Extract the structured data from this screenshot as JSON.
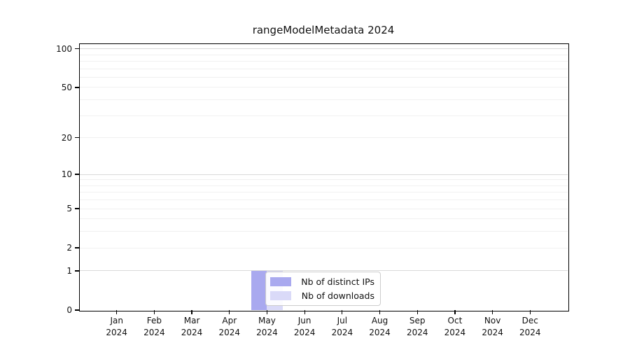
{
  "title": "rangeModelMetadata 2024",
  "chart_data": {
    "type": "bar",
    "title": "rangeModelMetadata 2024",
    "categories": [
      "Jan",
      "Feb",
      "Mar",
      "Apr",
      "May",
      "Jun",
      "Jul",
      "Aug",
      "Sep",
      "Oct",
      "Nov",
      "Dec"
    ],
    "x_year": "2024",
    "series": [
      {
        "id": "nb-of-distinct-ips",
        "name": "Nb of distinct IPs",
        "color": "#a9a9ef",
        "values": [
          0,
          0,
          0,
          0,
          1,
          0,
          0,
          0,
          0,
          0,
          0,
          0
        ]
      },
      {
        "id": "nb-of-downloads",
        "name": "Nb of downloads",
        "color": "#dadaf8",
        "values": [
          0,
          0,
          0,
          0,
          1,
          0,
          0,
          0,
          0,
          0,
          0,
          0
        ]
      }
    ],
    "xlabel": "",
    "ylabel": "",
    "yscale": "log1p",
    "ylim": [
      0,
      110
    ],
    "yticks": [
      0,
      1,
      2,
      5,
      10,
      20,
      50,
      100
    ],
    "major_gridlines": [
      1,
      10,
      100
    ],
    "minor_gridlines": [
      2,
      3,
      4,
      5,
      6,
      7,
      8,
      9,
      20,
      30,
      40,
      50,
      60,
      70,
      80,
      90
    ],
    "grid": true,
    "legend_position": "inside-bottom-center"
  }
}
